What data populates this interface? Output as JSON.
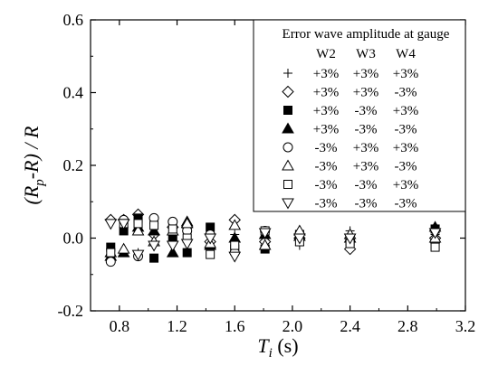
{
  "chart_data": {
    "type": "scatter",
    "title": "",
    "xlim": [
      0.6,
      3.2
    ],
    "ylim": [
      -0.2,
      0.6
    ],
    "xticks": [
      "0.8",
      "1.2",
      "1.6",
      "2.0",
      "2.4",
      "2.8",
      "3.2"
    ],
    "xtick_values": [
      0.8,
      1.2,
      1.6,
      2.0,
      2.4,
      2.8,
      3.2
    ],
    "yticks": [
      "-0.2",
      "0.0",
      "0.2",
      "0.4",
      "0.6"
    ],
    "ytick_values": [
      -0.2,
      0.0,
      0.2,
      0.4,
      0.6
    ],
    "xlabel": {
      "main": "T",
      "sub": "i",
      "unit": " (s)"
    },
    "ylabel": {
      "open": "(R",
      "sub": "p",
      "rest": "-R) / R"
    },
    "grid": false,
    "legend": {
      "placement": "top-right",
      "title": "Error wave amplitude at gauge",
      "columns": [
        "W2",
        "W3",
        "W4"
      ]
    },
    "series": [
      {
        "marker": "plus",
        "labels": [
          "+3%",
          "+3%",
          "+3%"
        ],
        "points": [
          [
            0.74,
            -0.03
          ],
          [
            0.83,
            0.03
          ],
          [
            0.93,
            -0.04
          ],
          [
            1.04,
            0.04
          ],
          [
            1.17,
            0.01
          ],
          [
            1.27,
            0.03
          ],
          [
            1.43,
            -0.01
          ],
          [
            1.6,
            0.01
          ],
          [
            1.81,
            0.0
          ],
          [
            2.05,
            -0.02
          ],
          [
            2.4,
            0.02
          ],
          [
            2.99,
            0.01
          ]
        ]
      },
      {
        "marker": "diamond",
        "labels": [
          "+3%",
          "+3%",
          "-3%"
        ],
        "points": [
          [
            0.74,
            0.05
          ],
          [
            0.83,
            0.05
          ],
          [
            0.93,
            0.065
          ],
          [
            1.04,
            0.01
          ],
          [
            1.17,
            0.03
          ],
          [
            1.27,
            0.03
          ],
          [
            1.43,
            -0.01
          ],
          [
            1.6,
            0.05
          ],
          [
            1.81,
            -0.01
          ],
          [
            2.05,
            0.0
          ],
          [
            2.4,
            -0.03
          ],
          [
            2.99,
            0.0
          ]
        ]
      },
      {
        "marker": "square-filled",
        "labels": [
          "+3%",
          "-3%",
          "+3%"
        ],
        "points": [
          [
            0.74,
            -0.025
          ],
          [
            0.83,
            0.02
          ],
          [
            0.93,
            0.055
          ],
          [
            1.04,
            -0.055
          ],
          [
            1.17,
            0.0
          ],
          [
            1.27,
            -0.04
          ],
          [
            1.43,
            0.03
          ],
          [
            1.6,
            -0.03
          ],
          [
            1.81,
            -0.03
          ],
          [
            2.05,
            0.01
          ],
          [
            2.4,
            -0.01
          ],
          [
            2.99,
            0.025
          ]
        ]
      },
      {
        "marker": "triangle-up-filled",
        "labels": [
          "+3%",
          "-3%",
          "-3%"
        ],
        "points": [
          [
            0.74,
            -0.05
          ],
          [
            0.83,
            -0.04
          ],
          [
            0.93,
            0.03
          ],
          [
            1.04,
            0.02
          ],
          [
            1.17,
            -0.04
          ],
          [
            1.27,
            0.045
          ],
          [
            1.43,
            -0.02
          ],
          [
            1.6,
            0.0
          ],
          [
            1.81,
            0.01
          ],
          [
            2.05,
            0.005
          ],
          [
            2.4,
            0.0
          ],
          [
            2.99,
            0.03
          ]
        ]
      },
      {
        "marker": "circle",
        "labels": [
          "-3%",
          "+3%",
          "+3%"
        ],
        "points": [
          [
            0.74,
            -0.065
          ],
          [
            0.83,
            0.05
          ],
          [
            0.93,
            -0.05
          ],
          [
            1.04,
            0.055
          ],
          [
            1.17,
            0.045
          ],
          [
            1.27,
            0.02
          ],
          [
            1.43,
            0.01
          ],
          [
            1.6,
            -0.04
          ],
          [
            1.81,
            0.02
          ],
          [
            2.05,
            0.01
          ],
          [
            2.4,
            0.0
          ],
          [
            2.99,
            -0.01
          ]
        ]
      },
      {
        "marker": "triangle-up",
        "labels": [
          "-3%",
          "+3%",
          "-3%"
        ],
        "points": [
          [
            0.74,
            -0.04
          ],
          [
            0.83,
            -0.03
          ],
          [
            0.93,
            0.02
          ],
          [
            1.04,
            -0.01
          ],
          [
            1.17,
            0.02
          ],
          [
            1.27,
            0.04
          ],
          [
            1.43,
            -0.015
          ],
          [
            1.6,
            0.035
          ],
          [
            1.81,
            -0.02
          ],
          [
            2.05,
            0.02
          ],
          [
            2.4,
            0.01
          ],
          [
            2.99,
            0.0
          ]
        ]
      },
      {
        "marker": "square",
        "labels": [
          "-3%",
          "-3%",
          "+3%"
        ],
        "points": [
          [
            0.74,
            -0.04
          ],
          [
            0.83,
            0.04
          ],
          [
            0.93,
            0.04
          ],
          [
            1.04,
            0.035
          ],
          [
            1.17,
            0.025
          ],
          [
            1.27,
            0.0
          ],
          [
            1.43,
            -0.045
          ],
          [
            1.6,
            -0.02
          ],
          [
            1.81,
            0.02
          ],
          [
            2.05,
            -0.01
          ],
          [
            2.4,
            -0.015
          ],
          [
            2.99,
            -0.025
          ]
        ]
      },
      {
        "marker": "triangle-down",
        "labels": [
          "-3%",
          "-3%",
          "-3%"
        ],
        "points": [
          [
            0.74,
            0.04
          ],
          [
            0.83,
            0.04
          ],
          [
            0.93,
            -0.045
          ],
          [
            1.04,
            -0.02
          ],
          [
            1.17,
            -0.02
          ],
          [
            1.27,
            -0.015
          ],
          [
            1.43,
            0.0
          ],
          [
            1.6,
            -0.05
          ],
          [
            1.81,
            0.015
          ],
          [
            2.05,
            0.0
          ],
          [
            2.4,
            0.0
          ],
          [
            2.99,
            0.015
          ]
        ]
      }
    ]
  }
}
